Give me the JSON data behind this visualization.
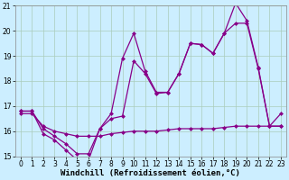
{
  "xlabel": "Windchill (Refroidissement éolien,°C)",
  "background_color": "#cceeff",
  "grid_color": "#aaccbb",
  "line_color": "#880088",
  "xlim_min": -0.5,
  "xlim_max": 23.5,
  "ylim_min": 15,
  "ylim_max": 21,
  "yticks": [
    15,
    16,
    17,
    18,
    19,
    20,
    21
  ],
  "xticks": [
    0,
    1,
    2,
    3,
    4,
    5,
    6,
    7,
    8,
    9,
    10,
    11,
    12,
    13,
    14,
    15,
    16,
    17,
    18,
    19,
    20,
    21,
    22,
    23
  ],
  "line_flat_x": [
    0,
    1,
    2,
    3,
    4,
    5,
    6,
    7,
    8,
    9,
    10,
    11,
    12,
    13,
    14,
    15,
    16,
    17,
    18,
    19,
    20,
    21,
    22,
    23
  ],
  "line_flat_y": [
    16.7,
    16.7,
    16.2,
    16.0,
    15.9,
    15.8,
    15.8,
    15.8,
    15.9,
    15.95,
    16.0,
    16.0,
    16.0,
    16.05,
    16.1,
    16.1,
    16.1,
    16.1,
    16.15,
    16.2,
    16.2,
    16.2,
    16.2,
    16.2
  ],
  "line_mid_x": [
    0,
    1,
    2,
    3,
    4,
    5,
    6,
    7,
    8,
    9,
    10,
    11,
    12,
    13,
    14,
    15,
    16,
    17,
    18,
    19,
    20,
    21,
    22,
    23
  ],
  "line_mid_y": [
    16.8,
    16.8,
    15.9,
    15.65,
    15.25,
    14.85,
    14.85,
    16.1,
    16.5,
    16.6,
    18.8,
    18.3,
    17.5,
    17.55,
    18.3,
    19.5,
    19.45,
    19.1,
    19.9,
    20.3,
    20.3,
    18.5,
    16.2,
    16.2
  ],
  "line_high_x": [
    0,
    1,
    2,
    3,
    4,
    5,
    6,
    7,
    8,
    9,
    10,
    11,
    12,
    13,
    14,
    15,
    16,
    17,
    18,
    19,
    20,
    21,
    22,
    23
  ],
  "line_high_y": [
    16.8,
    16.8,
    16.1,
    15.8,
    15.5,
    15.1,
    15.1,
    16.1,
    16.7,
    18.9,
    19.9,
    18.4,
    17.55,
    17.55,
    18.3,
    19.5,
    19.45,
    19.1,
    19.9,
    21.1,
    20.4,
    18.55,
    16.2,
    16.7
  ],
  "markersize": 2.5,
  "linewidth": 0.9,
  "xlabel_fontsize": 6.5,
  "tick_fontsize": 5.5
}
